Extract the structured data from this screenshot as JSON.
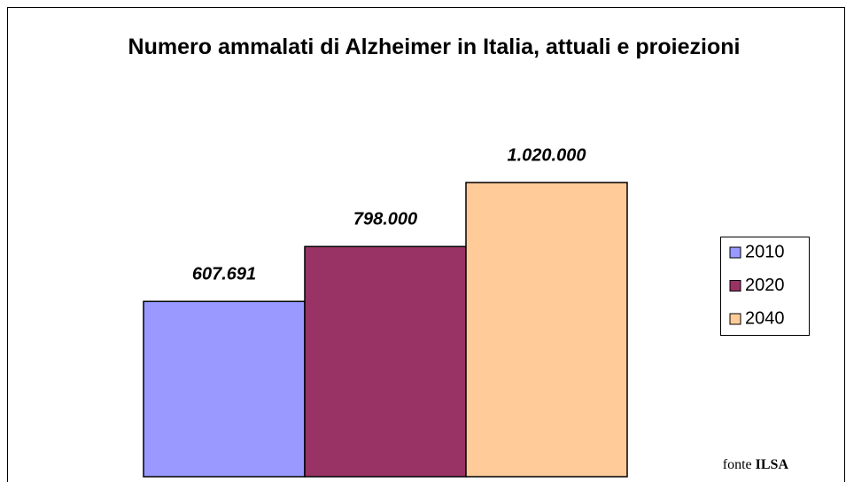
{
  "chart_data": {
    "type": "bar",
    "title": "Numero ammalati di Alzheimer in Italia, attuali e proiezioni",
    "series": [
      {
        "name": "2010",
        "color": "#9999ff",
        "values": [
          607691
        ],
        "value_labels": [
          "607.691"
        ]
      },
      {
        "name": "2020",
        "color": "#993366",
        "values": [
          798000
        ],
        "value_labels": [
          "798.000"
        ]
      },
      {
        "name": "2040",
        "color": "#ffcc99",
        "values": [
          1020000
        ],
        "value_labels": [
          "1.020.000"
        ]
      }
    ],
    "legend": "right",
    "source": {
      "prefix": "fonte",
      "name": "ILSA"
    }
  }
}
